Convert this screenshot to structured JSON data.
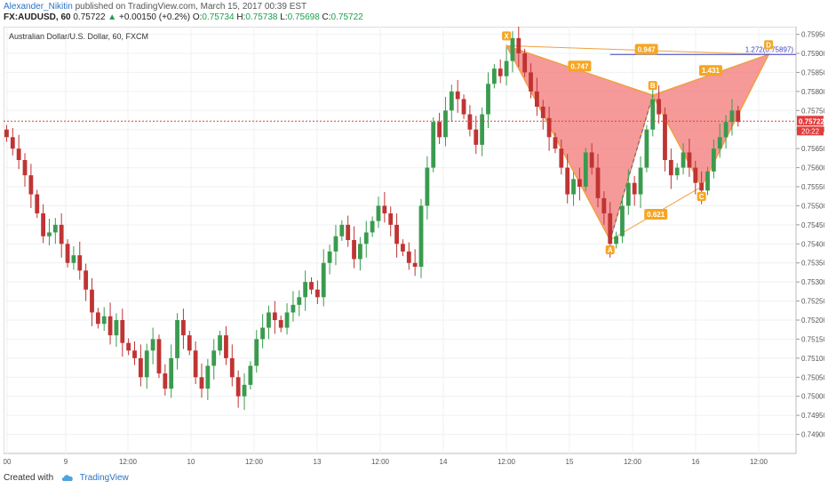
{
  "header": {
    "author": "Alexander_Nikitin",
    "published_text": "published on TradingView.com, March 15, 2017 00:39 EST",
    "symbol": "FX:AUDUSD, 60",
    "last": "0.75722",
    "change_arrow": "▲",
    "change": "+0.00150 (+0.2%)",
    "o_label": "O:",
    "o_value": "0.75734",
    "h_label": "H:",
    "h_value": "0.75738",
    "l_label": "L:",
    "l_value": "0.75698",
    "c_label": "C:",
    "c_value": "0.75722"
  },
  "footer": {
    "created_with": "Created with",
    "brand": "TradingView"
  },
  "chart_data": {
    "type": "candlestick",
    "title": "Australian Dollar/U.S. Dollar, 60, FXCM",
    "ylim": [
      0.7485,
      0.7597
    ],
    "y_ticks": [
      "0.75950",
      "0.75900",
      "0.75850",
      "0.75800",
      "0.75750",
      "0.75700",
      "0.75650",
      "0.75600",
      "0.75550",
      "0.75500",
      "0.75450",
      "0.75400",
      "0.75350",
      "0.75300",
      "0.75250",
      "0.75200",
      "0.75150",
      "0.75100",
      "0.75050",
      "0.75000",
      "0.74950",
      "0.74900"
    ],
    "x_ticks": [
      "00",
      "9",
      "12:00",
      "10",
      "12:00",
      "13",
      "12:00",
      "14",
      "12:00",
      "15",
      "12:00",
      "16",
      "12:00"
    ],
    "candles_close": [
      0.7568,
      0.7565,
      0.7562,
      0.7558,
      0.7553,
      0.7548,
      0.7542,
      0.7543,
      0.7545,
      0.754,
      0.7535,
      0.7537,
      0.7533,
      0.7528,
      0.7522,
      0.7519,
      0.7521,
      0.7516,
      0.752,
      0.7514,
      0.7512,
      0.751,
      0.7505,
      0.7512,
      0.7515,
      0.7506,
      0.7502,
      0.751,
      0.752,
      0.7516,
      0.7512,
      0.7505,
      0.7502,
      0.7508,
      0.7512,
      0.7516,
      0.751,
      0.7505,
      0.75,
      0.7503,
      0.7508,
      0.7515,
      0.7518,
      0.7522,
      0.752,
      0.7518,
      0.7522,
      0.7524,
      0.7526,
      0.753,
      0.7528,
      0.7526,
      0.7535,
      0.7538,
      0.7542,
      0.7545,
      0.7541,
      0.7536,
      0.754,
      0.7543,
      0.7546,
      0.755,
      0.7548,
      0.7545,
      0.754,
      0.7538,
      0.7535,
      0.7534,
      0.755,
      0.756,
      0.7572,
      0.7568,
      0.7575,
      0.758,
      0.7578,
      0.7574,
      0.757,
      0.7566,
      0.7574,
      0.7582,
      0.7586,
      0.7584,
      0.7588,
      0.7594,
      0.759,
      0.7585,
      0.758,
      0.7576,
      0.7573,
      0.7568,
      0.7565,
      0.756,
      0.7553,
      0.7557,
      0.7555,
      0.7564,
      0.756,
      0.7552,
      0.7548,
      0.754,
      0.7542,
      0.755,
      0.7556,
      0.7553,
      0.756,
      0.757,
      0.7578,
      0.7574,
      0.7562,
      0.7558,
      0.756,
      0.7564,
      0.756,
      0.7556,
      0.7554,
      0.7559,
      0.7565,
      0.7568,
      0.7572,
      0.7575,
      0.7572
    ],
    "last_price": 0.75722,
    "countdown": "20:22",
    "pattern": {
      "points": [
        {
          "label": "X",
          "index": 82,
          "price": 0.7592
        },
        {
          "label": "A",
          "index": 99,
          "price": 0.7541
        },
        {
          "label": "B",
          "index": 106,
          "price": 0.7579
        },
        {
          "label": "C",
          "index": 114,
          "price": 0.7555
        },
        {
          "label": "D",
          "index": 125,
          "price": 0.75897
        }
      ],
      "ratios": {
        "XB": "0.747",
        "AC": "0.621",
        "BD": "1.431",
        "XD": "0.947"
      },
      "target_label": "1.272(0.75897)",
      "target_price": 0.75897
    }
  }
}
